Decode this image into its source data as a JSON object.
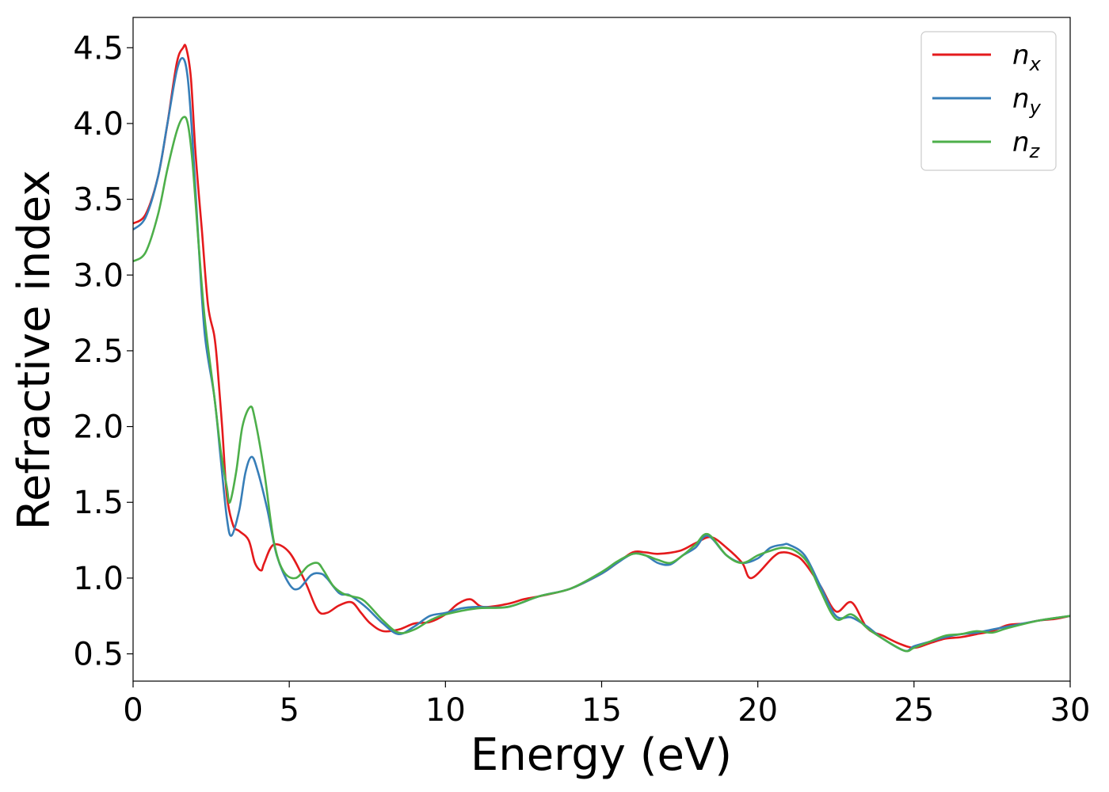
{
  "chart_data": {
    "type": "line",
    "title": "",
    "xlabel": "Energy (eV)",
    "ylabel": "Refractive index",
    "xlim": [
      0,
      30
    ],
    "ylim": [
      0.32,
      4.7
    ],
    "xticks": [
      0,
      5,
      10,
      15,
      20,
      25,
      30
    ],
    "yticks": [
      0.5,
      1.0,
      1.5,
      2.0,
      2.5,
      3.0,
      3.5,
      4.0,
      4.5
    ],
    "xtick_labels": [
      "0",
      "5",
      "10",
      "15",
      "20",
      "25",
      "30"
    ],
    "ytick_labels": [
      "0.5",
      "1.0",
      "1.5",
      "2.0",
      "2.5",
      "3.0",
      "3.5",
      "4.0",
      "4.5"
    ],
    "grid": false,
    "legend_position": "top-right",
    "series": [
      {
        "name": "n",
        "subscript": "x",
        "color": "#e41a1c",
        "x": [
          0,
          0.4,
          0.8,
          1.1,
          1.4,
          1.6,
          1.7,
          1.85,
          2.0,
          2.2,
          2.4,
          2.6,
          2.7,
          2.85,
          3.0,
          3.2,
          3.4,
          3.7,
          3.9,
          4.1,
          4.2,
          4.5,
          5.0,
          5.5,
          5.9,
          6.2,
          6.6,
          7.0,
          7.3,
          7.6,
          8.0,
          8.5,
          9.0,
          9.5,
          10.0,
          10.4,
          10.8,
          11.2,
          12.0,
          12.5,
          13.0,
          14.0,
          15.0,
          15.5,
          16.0,
          16.4,
          16.8,
          17.5,
          18.0,
          18.5,
          19.0,
          19.5,
          19.8,
          20.5,
          20.8,
          21.2,
          21.5,
          22.0,
          22.5,
          23.0,
          23.5,
          24.0,
          24.5,
          25.0,
          25.5,
          26.0,
          26.5,
          27.0,
          27.5,
          28.0,
          28.5,
          29.0,
          29.5,
          30.0
        ],
        "values": [
          3.34,
          3.4,
          3.65,
          4.0,
          4.4,
          4.5,
          4.5,
          4.3,
          3.8,
          3.3,
          2.8,
          2.6,
          2.4,
          2.0,
          1.55,
          1.35,
          1.31,
          1.25,
          1.1,
          1.05,
          1.1,
          1.22,
          1.17,
          0.98,
          0.79,
          0.77,
          0.82,
          0.84,
          0.77,
          0.7,
          0.65,
          0.66,
          0.7,
          0.71,
          0.76,
          0.83,
          0.86,
          0.81,
          0.83,
          0.86,
          0.88,
          0.93,
          1.03,
          1.1,
          1.17,
          1.17,
          1.16,
          1.18,
          1.23,
          1.27,
          1.2,
          1.1,
          1.0,
          1.14,
          1.17,
          1.15,
          1.1,
          0.95,
          0.78,
          0.84,
          0.67,
          0.62,
          0.57,
          0.54,
          0.57,
          0.6,
          0.61,
          0.63,
          0.65,
          0.69,
          0.7,
          0.72,
          0.73,
          0.75
        ]
      },
      {
        "name": "n",
        "subscript": "y",
        "color": "#377eb8",
        "x": [
          0,
          0.4,
          0.8,
          1.1,
          1.4,
          1.6,
          1.75,
          1.9,
          2.1,
          2.3,
          2.6,
          2.8,
          3.0,
          3.15,
          3.4,
          3.6,
          3.8,
          4.0,
          4.3,
          4.6,
          5.0,
          5.3,
          5.7,
          6.0,
          6.2,
          6.6,
          6.9,
          7.2,
          7.5,
          8.0,
          8.5,
          9.0,
          9.5,
          10.0,
          10.5,
          11.0,
          12.0,
          13.0,
          14.0,
          15.0,
          15.5,
          16.0,
          16.4,
          16.8,
          17.2,
          17.6,
          18.0,
          18.4,
          19.0,
          19.5,
          20.0,
          20.4,
          20.8,
          21.0,
          21.5,
          22.0,
          22.5,
          23.0,
          23.5,
          24.0,
          24.7,
          25.0,
          25.5,
          26.0,
          26.5,
          27.0,
          27.5,
          28.0,
          29.0,
          30.0
        ],
        "values": [
          3.3,
          3.38,
          3.65,
          4.0,
          4.35,
          4.43,
          4.3,
          3.9,
          3.2,
          2.6,
          2.2,
          1.8,
          1.4,
          1.28,
          1.45,
          1.7,
          1.8,
          1.7,
          1.45,
          1.15,
          0.96,
          0.93,
          1.02,
          1.03,
          1.0,
          0.9,
          0.89,
          0.85,
          0.8,
          0.7,
          0.63,
          0.68,
          0.75,
          0.77,
          0.8,
          0.81,
          0.81,
          0.88,
          0.93,
          1.03,
          1.1,
          1.16,
          1.15,
          1.1,
          1.09,
          1.15,
          1.2,
          1.28,
          1.15,
          1.1,
          1.13,
          1.2,
          1.22,
          1.22,
          1.15,
          0.95,
          0.75,
          0.74,
          0.68,
          0.6,
          0.52,
          0.55,
          0.58,
          0.61,
          0.63,
          0.64,
          0.66,
          0.68,
          0.72,
          0.75
        ]
      },
      {
        "name": "n",
        "subscript": "z",
        "color": "#4daf4a",
        "x": [
          0,
          0.4,
          0.8,
          1.1,
          1.4,
          1.6,
          1.75,
          1.9,
          2.1,
          2.3,
          2.6,
          2.8,
          3.0,
          3.1,
          3.3,
          3.5,
          3.75,
          3.9,
          4.2,
          4.5,
          4.8,
          5.2,
          5.6,
          5.9,
          6.1,
          6.4,
          6.7,
          7.0,
          7.4,
          8.0,
          8.5,
          9.0,
          9.5,
          10.0,
          11.0,
          12.0,
          13.0,
          14.0,
          15.0,
          15.5,
          16.0,
          16.4,
          16.8,
          17.2,
          17.6,
          18.0,
          18.4,
          19.0,
          19.5,
          20.0,
          20.4,
          20.8,
          21.2,
          21.6,
          22.0,
          22.5,
          23.0,
          23.5,
          24.0,
          24.7,
          25.0,
          25.5,
          26.0,
          26.5,
          27.0,
          27.5,
          28.0,
          29.0,
          30.0
        ],
        "values": [
          3.09,
          3.15,
          3.4,
          3.7,
          3.95,
          4.04,
          4.0,
          3.75,
          3.2,
          2.7,
          2.2,
          1.85,
          1.6,
          1.5,
          1.7,
          2.0,
          2.13,
          2.05,
          1.7,
          1.25,
          1.05,
          1.0,
          1.08,
          1.1,
          1.05,
          0.95,
          0.9,
          0.88,
          0.85,
          0.72,
          0.64,
          0.66,
          0.72,
          0.76,
          0.8,
          0.81,
          0.88,
          0.93,
          1.04,
          1.11,
          1.16,
          1.15,
          1.12,
          1.1,
          1.15,
          1.22,
          1.29,
          1.15,
          1.1,
          1.15,
          1.18,
          1.2,
          1.18,
          1.1,
          0.92,
          0.73,
          0.76,
          0.67,
          0.6,
          0.52,
          0.54,
          0.58,
          0.62,
          0.63,
          0.65,
          0.64,
          0.67,
          0.72,
          0.75
        ]
      }
    ]
  }
}
